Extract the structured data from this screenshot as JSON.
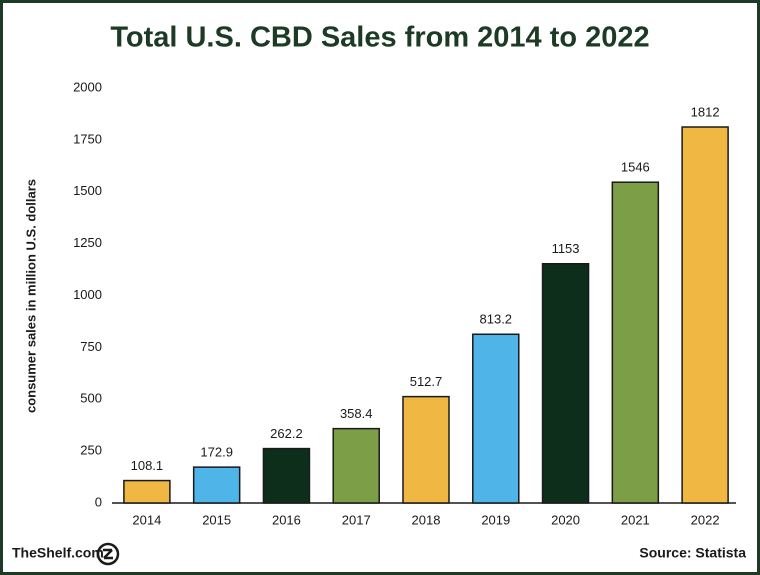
{
  "chart_data": {
    "type": "bar",
    "title": "Total U.S. CBD Sales from 2014 to 2022",
    "y_label": "consumer sales in million U.S. dollars",
    "categories": [
      "2014",
      "2015",
      "2016",
      "2017",
      "2018",
      "2019",
      "2020",
      "2021",
      "2022"
    ],
    "values": [
      108.1,
      172.9,
      262.2,
      358.4,
      512.7,
      813.2,
      1153,
      1546,
      1812
    ],
    "colors": [
      "#f0b843",
      "#4fb4e8",
      "#0c2e1b",
      "#7b9e46",
      "#f0b843",
      "#4fb4e8",
      "#0c2e1b",
      "#7b9e46",
      "#f0b843"
    ],
    "ylim": [
      0,
      2000
    ],
    "yticks": [
      0,
      250,
      500,
      750,
      1000,
      1250,
      1500,
      1750,
      2000
    ],
    "grid": false,
    "footer_left": "TheShelf.com",
    "footer_right": "Source: Statista"
  }
}
